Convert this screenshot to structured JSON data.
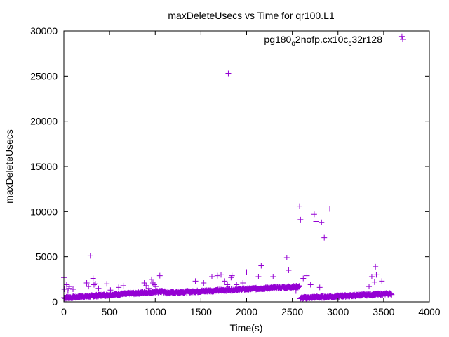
{
  "chart_data": {
    "type": "scatter",
    "title": "maxDeleteUsecs vs Time for qr100.L1",
    "xlabel": "Time(s)",
    "ylabel": "maxDeleteUsecs",
    "xlim": [
      0,
      4000
    ],
    "ylim": [
      0,
      30000
    ],
    "x_ticks": [
      0,
      500,
      1000,
      1500,
      2000,
      2500,
      3000,
      3500,
      4000
    ],
    "y_ticks": [
      0,
      5000,
      10000,
      15000,
      20000,
      25000,
      30000
    ],
    "grid": false,
    "legend_position": "top-right",
    "marker_color": "#9400d3",
    "legend": {
      "prefix": "pg180",
      "sub1": "o",
      "mid": "2nofp.cx10c",
      "sub2": "c",
      "suffix": "32r128"
    },
    "series": [
      {
        "values_x": [
          0,
          5,
          30,
          45,
          55,
          60,
          100,
          250,
          270,
          290,
          320,
          330,
          345,
          380,
          470,
          510,
          600,
          650,
          880,
          900,
          930,
          960,
          975,
          990,
          1005,
          1050,
          1440,
          1530,
          1620,
          1680,
          1720,
          1760,
          1790,
          1800,
          1830,
          1840,
          1890,
          1960,
          2000,
          2130,
          2160,
          2290,
          2440,
          2460,
          2470,
          2540,
          2580,
          2590,
          2620,
          2660,
          2700,
          2740,
          2760,
          2800,
          2820,
          2850,
          2910,
          3340,
          3370,
          3400,
          3410,
          3420,
          3480
        ],
        "values_y": [
          2700,
          1400,
          1900,
          1200,
          1500,
          1700,
          1400,
          2100,
          1700,
          5100,
          2600,
          1900,
          2000,
          1500,
          2000,
          1300,
          1600,
          1800,
          2100,
          1800,
          1500,
          2500,
          2100,
          1900,
          1700,
          2900,
          2300,
          2100,
          2800,
          2900,
          3000,
          2300,
          1900,
          25300,
          2700,
          2900,
          1900,
          2100,
          3300,
          2800,
          4000,
          2800,
          4900,
          3500,
          1600,
          1200,
          10600,
          9100,
          2600,
          2900,
          1900,
          9700,
          8900,
          1600,
          8800,
          7100,
          10300,
          1700,
          2800,
          2200,
          3900,
          3000,
          2300
        ]
      },
      {
        "values_x": [
          3700
        ],
        "values_y": [
          29400
        ]
      }
    ]
  }
}
